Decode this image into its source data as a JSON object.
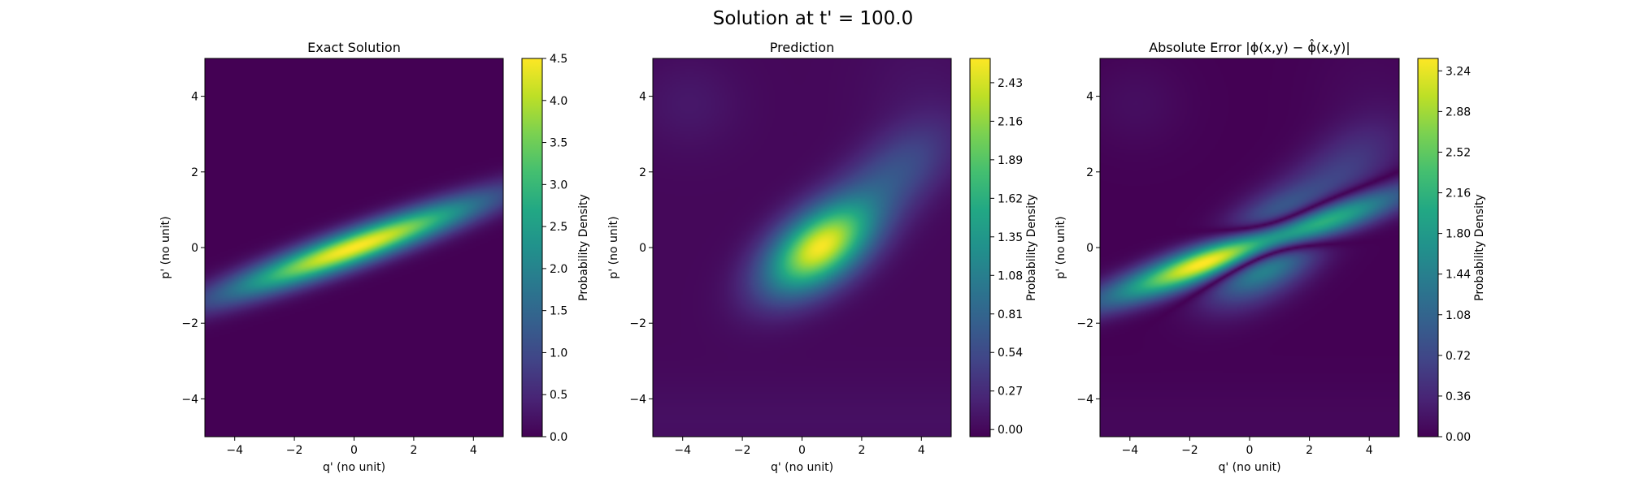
{
  "figure": {
    "suptitle": "Solution at t' = 100.0"
  },
  "chart_data": [
    {
      "type": "heatmap",
      "title": "Exact Solution",
      "xlabel": "q' (no unit)",
      "ylabel": "p' (no unit)",
      "xlim": [
        -5,
        5
      ],
      "ylim": [
        -5,
        5
      ],
      "xticks": [
        -4,
        -2,
        0,
        2,
        4
      ],
      "yticks": [
        -4,
        -2,
        0,
        2,
        4
      ],
      "colormap": "viridis",
      "colorbar": {
        "label": "Probability Density",
        "min": 0.0,
        "max": 4.5,
        "ticks": [
          "0.0",
          "0.5",
          "1.0",
          "1.5",
          "2.0",
          "2.5",
          "3.0",
          "3.5",
          "4.0",
          "4.5"
        ]
      },
      "field": {
        "kind": "tilted-gaussian",
        "center": [
          0,
          0
        ],
        "peak": 4.5,
        "slope": 0.28,
        "sigma_along": 3.0,
        "sigma_across": 0.33
      }
    },
    {
      "type": "heatmap",
      "title": "Prediction",
      "xlabel": "q' (no unit)",
      "ylabel": "p' (no unit)",
      "xlim": [
        -5,
        5
      ],
      "ylim": [
        -5,
        5
      ],
      "xticks": [
        -4,
        -2,
        0,
        2,
        4
      ],
      "yticks": [
        -4,
        -2,
        0,
        2,
        4
      ],
      "colormap": "viridis",
      "colorbar": {
        "label": "Probability Density",
        "min": -0.05,
        "max": 2.6,
        "ticks": [
          "0.00",
          "0.27",
          "0.54",
          "0.81",
          "1.08",
          "1.35",
          "1.62",
          "1.89",
          "2.16",
          "2.43"
        ]
      },
      "field": {
        "kind": "prediction",
        "center": [
          0.6,
          0
        ],
        "peak": 2.55
      }
    },
    {
      "type": "heatmap",
      "title": "Absolute Error |ϕ(x,y) − ϕ̂(x,y)|",
      "xlabel": "q' (no unit)",
      "ylabel": "p' (no unit)",
      "xlim": [
        -5,
        5
      ],
      "ylim": [
        -5,
        5
      ],
      "xticks": [
        -4,
        -2,
        0,
        2,
        4
      ],
      "yticks": [
        -4,
        -2,
        0,
        2,
        4
      ],
      "colormap": "viridis",
      "colorbar": {
        "label": "Probability Density",
        "min": 0.0,
        "max": 3.35,
        "ticks": [
          "0.00",
          "0.36",
          "0.72",
          "1.08",
          "1.44",
          "1.80",
          "2.16",
          "2.52",
          "2.88",
          "3.24"
        ]
      },
      "field": {
        "kind": "abs-error"
      }
    }
  ]
}
